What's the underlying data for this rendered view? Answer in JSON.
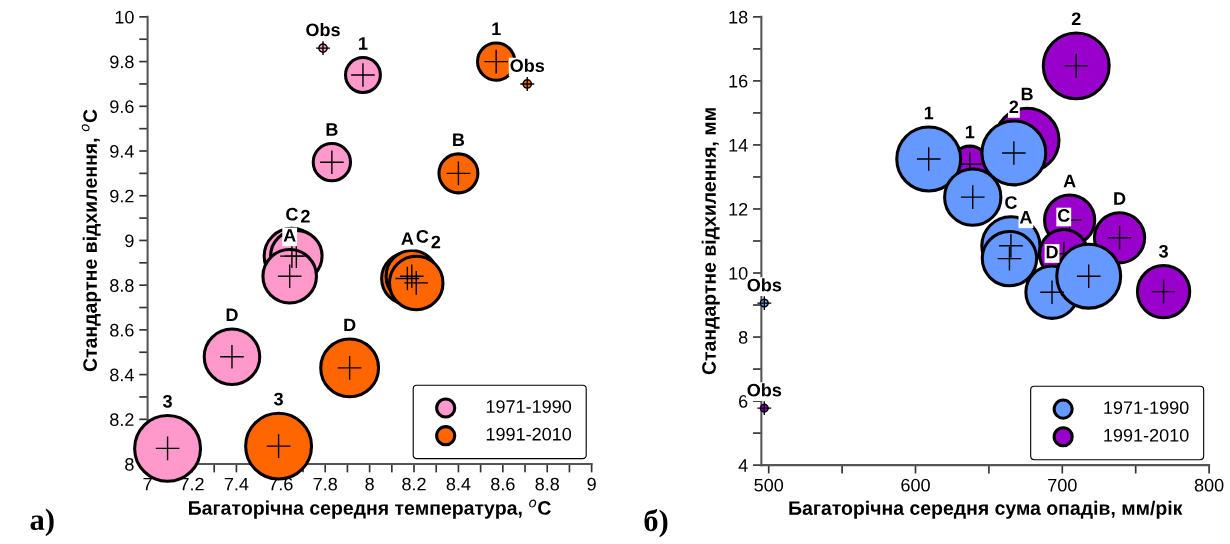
{
  "chart_data": [
    {
      "type": "bubble",
      "xlabel": "Багаторічна середня температура, $^{o}$C",
      "ylabel": "Стандартне відхилення, $^{o}$C",
      "xlim": [
        7,
        9
      ],
      "ylim": [
        8,
        10
      ],
      "xticks": [
        7,
        {
          "value": 7.1,
          "label": null
        },
        7.2,
        {
          "value": 7.3,
          "label": null
        },
        7.4,
        {
          "value": 7.5,
          "label": null
        },
        7.6,
        {
          "value": 7.7,
          "label": null
        },
        7.8,
        {
          "value": 7.9,
          "label": null
        },
        8,
        {
          "value": 8.1,
          "label": null
        },
        8.2,
        {
          "value": 8.3,
          "label": null
        },
        8.4,
        {
          "value": 8.5,
          "label": null
        },
        8.6,
        {
          "value": 8.7,
          "label": null
        },
        8.8,
        {
          "value": 8.9,
          "label": null
        },
        9
      ],
      "yticks": [
        8,
        {
          "value": 8.1,
          "label": null
        },
        8.2,
        {
          "value": 8.3,
          "label": null
        },
        8.4,
        {
          "value": 8.5,
          "label": null
        },
        8.6,
        {
          "value": 8.7,
          "label": null
        },
        8.8,
        {
          "value": 8.9,
          "label": null
        },
        9,
        {
          "value": 9.1,
          "label": null
        },
        9.2,
        {
          "value": 9.3,
          "label": null
        },
        9.4,
        {
          "value": 9.5,
          "label": null
        },
        9.6,
        {
          "value": 9.7,
          "label": null
        },
        9.8,
        {
          "value": 9.9,
          "label": null
        },
        10
      ],
      "grid": false,
      "legend": "bottom right",
      "marker": "circle",
      "series": [
        {
          "name": "1971-1990",
          "color": "#ff99cc",
          "x": [
            7.79,
            7.97,
            7.83,
            7.65,
            7.67,
            7.64,
            7.38,
            7.09
          ],
          "values": [
            9.86,
            9.74,
            9.35,
            8.93,
            8.93,
            8.84,
            8.48,
            8.07
          ],
          "sizes": [
            0.016,
            0.28,
            0.32,
            0.71,
            0.61,
            0.66,
            0.71,
            1
          ]
        },
        {
          "name": "1991-2010",
          "color": "#ff6600",
          "x": [
            8.71,
            8.57,
            8.4,
            8.17,
            8.19,
            8.21,
            7.91,
            7.59
          ],
          "values": [
            9.7,
            9.8,
            9.3,
            8.83,
            8.84,
            8.81,
            8.43,
            8.08
          ],
          "sizes": [
            0.016,
            0.32,
            0.35,
            0.61,
            0.61,
            0.66,
            0.77,
            1
          ]
        }
      ],
      "annotations": [
        {
          "text": "Obs",
          "x": 7.79,
          "y": 9.86
        },
        {
          "text": "1",
          "x": 7.97,
          "y": 9.74
        },
        {
          "text": "B",
          "x": 7.83,
          "y": 9.35
        },
        {
          "text": "C",
          "x": 7.65,
          "y": 8.93
        },
        {
          "text": "2",
          "x": 7.67,
          "y": 8.93
        },
        {
          "text": "A",
          "x": 7.64,
          "y": 8.84
        },
        {
          "text": "D",
          "x": 7.38,
          "y": 8.48
        },
        {
          "text": "3",
          "x": 7.09,
          "y": 8.07
        },
        {
          "text": "Obs",
          "x": 8.71,
          "y": 9.7
        },
        {
          "text": "1",
          "x": 8.57,
          "y": 9.8
        },
        {
          "text": "B",
          "x": 8.4,
          "y": 9.3
        },
        {
          "text": "A",
          "x": 8.17,
          "y": 8.83
        },
        {
          "text": "C",
          "x": 8.19,
          "y": 8.84
        },
        {
          "text": "2",
          "x": 8.21,
          "y": 8.81
        },
        {
          "text": "D",
          "x": 7.91,
          "y": 8.43
        },
        {
          "text": "3",
          "x": 7.59,
          "y": 8.08
        },
        "а)"
      ]
    },
    {
      "type": "bubble",
      "xlabel": "Багаторічна середня сума опадів, мм/рік",
      "ylabel": "Стандартне відхилення, мм",
      "xlim": [
        495,
        800
      ],
      "ylim": [
        4,
        18
      ],
      "xticks": [
        500,
        {
          "value": 550,
          "label": null
        },
        600,
        {
          "value": 650,
          "label": null
        },
        700,
        {
          "value": 750,
          "label": null
        },
        800
      ],
      "yticks": [
        4,
        {
          "value": 5,
          "label": null
        },
        6,
        {
          "value": 7,
          "label": null
        },
        8,
        {
          "value": 9,
          "label": null
        },
        10,
        {
          "value": 11,
          "label": null
        },
        12,
        {
          "value": 13,
          "label": null
        },
        14,
        {
          "value": 15,
          "label": null
        },
        16,
        {
          "value": 17,
          "label": null
        },
        18
      ],
      "grid": false,
      "legend": "bottom right",
      "marker": "circle",
      "series": [
        {
          "name": "1971-1990",
          "color": "#6699ff",
          "x": [
            497,
            609,
            639,
            667,
            665,
            664,
            693,
            718
          ],
          "values": [
            9.06,
            13.56,
            12.37,
            13.75,
            10.85,
            10.45,
            9.4,
            9.9
          ],
          "sizes": [
            0.014,
            0.94,
            0.73,
            0.94,
            0.78,
            0.68,
            0.63,
            0.94
          ]
        },
        {
          "name": "1991-2010",
          "color": "#9900cc",
          "x": [
            497,
            637,
            676,
            709.5,
            705,
            739,
            701,
            769
          ],
          "values": [
            5.78,
            13.4,
            14.15,
            16.47,
            11.65,
            11.1,
            10.6,
            9.42
          ],
          "sizes": [
            0.014,
            0.3,
            0.94,
            1,
            0.58,
            0.58,
            0.54,
            0.63
          ]
        }
      ],
      "annotations": [
        {
          "text": "Obs",
          "x": 497,
          "y": 9.06
        },
        {
          "text": "1",
          "x": 609,
          "y": 13.56
        },
        {
          "text": "2",
          "x": 667,
          "y": 13.75
        },
        {
          "text": "C",
          "x": 665,
          "y": 10.85
        },
        {
          "text": "A",
          "x": 664,
          "y": 10.45
        },
        {
          "text": "D",
          "x": 693,
          "y": 9.4
        },
        {
          "text": "Obs",
          "x": 497,
          "y": 5.78
        },
        {
          "text": "1",
          "x": 637,
          "y": 13.4
        },
        {
          "text": "B",
          "x": 676,
          "y": 14.15
        },
        {
          "text": "2",
          "x": 709.5,
          "y": 16.47
        },
        {
          "text": "A",
          "x": 705,
          "y": 11.65
        },
        {
          "text": "D",
          "x": 739,
          "y": 11.1
        },
        {
          "text": "C",
          "x": 701,
          "y": 10.6
        },
        {
          "text": "3",
          "x": 769,
          "y": 9.42
        },
        "б)"
      ]
    }
  ]
}
